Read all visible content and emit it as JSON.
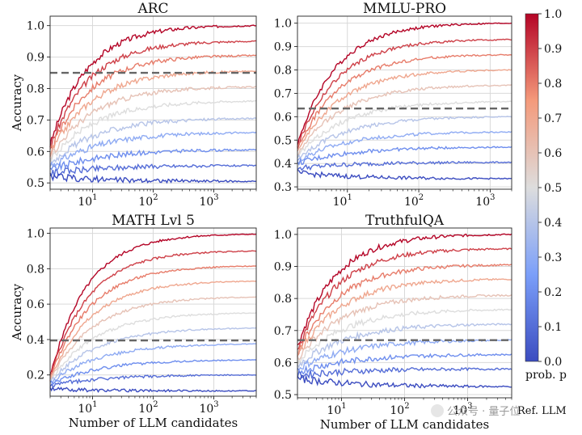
{
  "chart_data": [
    {
      "type": "line",
      "title": "ARC",
      "xlabel": "",
      "ylabel": "Accuracy",
      "xscale": "log",
      "xlim": [
        2,
        5000
      ],
      "ylim": [
        0.48,
        1.03
      ],
      "yticks": [
        0.5,
        0.6,
        0.7,
        0.8,
        0.9,
        1.0
      ],
      "ytick_labels": [
        "0.5",
        "0.6",
        "0.7",
        "0.8",
        "0.9",
        "1.0"
      ],
      "xtick_exponents": [
        "1",
        "2",
        "3"
      ],
      "reference_line": 0.85,
      "series": [
        {
          "p": 1.0,
          "start": 0.62,
          "end": 1.0
        },
        {
          "p": 0.9,
          "start": 0.61,
          "end": 0.95
        },
        {
          "p": 0.8,
          "start": 0.6,
          "end": 0.905
        },
        {
          "p": 0.7,
          "start": 0.59,
          "end": 0.855
        },
        {
          "p": 0.6,
          "start": 0.58,
          "end": 0.805
        },
        {
          "p": 0.5,
          "start": 0.57,
          "end": 0.76
        },
        {
          "p": 0.4,
          "start": 0.56,
          "end": 0.705
        },
        {
          "p": 0.3,
          "start": 0.55,
          "end": 0.66
        },
        {
          "p": 0.2,
          "start": 0.54,
          "end": 0.605
        },
        {
          "p": 0.1,
          "start": 0.53,
          "end": 0.555
        },
        {
          "p": 0.0,
          "start": 0.52,
          "end": 0.505
        }
      ]
    },
    {
      "type": "line",
      "title": "MMLU-PRO",
      "xlabel": "",
      "ylabel": "",
      "xscale": "log",
      "xlim": [
        2,
        2000
      ],
      "ylim": [
        0.29,
        1.03
      ],
      "yticks": [
        0.3,
        0.4,
        0.5,
        0.6,
        0.7,
        0.8,
        0.9,
        1.0
      ],
      "ytick_labels": [
        "0.3",
        "0.4",
        "0.5",
        "0.6",
        "0.7",
        "0.8",
        "0.9",
        "1.0"
      ],
      "xtick_exponents": [
        "1",
        "2",
        "3"
      ],
      "reference_line": 0.635,
      "series": [
        {
          "p": 1.0,
          "start": 0.48,
          "end": 1.0
        },
        {
          "p": 0.9,
          "start": 0.47,
          "end": 0.93
        },
        {
          "p": 0.8,
          "start": 0.46,
          "end": 0.865
        },
        {
          "p": 0.7,
          "start": 0.45,
          "end": 0.8
        },
        {
          "p": 0.6,
          "start": 0.44,
          "end": 0.735
        },
        {
          "p": 0.5,
          "start": 0.43,
          "end": 0.665
        },
        {
          "p": 0.4,
          "start": 0.42,
          "end": 0.6
        },
        {
          "p": 0.3,
          "start": 0.41,
          "end": 0.535
        },
        {
          "p": 0.2,
          "start": 0.4,
          "end": 0.47
        },
        {
          "p": 0.1,
          "start": 0.38,
          "end": 0.405
        },
        {
          "p": 0.0,
          "start": 0.36,
          "end": 0.335
        }
      ]
    },
    {
      "type": "line",
      "title": "MATH Lvl 5",
      "xlabel": "Number of LLM candidates",
      "ylabel": "Accuracy",
      "xscale": "log",
      "xlim": [
        2,
        5000
      ],
      "ylim": [
        0.08,
        1.03
      ],
      "yticks": [
        0.2,
        0.4,
        0.6,
        0.8,
        1.0
      ],
      "ytick_labels": [
        "0.2",
        "0.4",
        "0.6",
        "0.8",
        "1.0"
      ],
      "xtick_exponents": [
        "1",
        "2",
        "3"
      ],
      "reference_line": 0.395,
      "series": [
        {
          "p": 1.0,
          "start": 0.19,
          "end": 0.995
        },
        {
          "p": 0.9,
          "start": 0.185,
          "end": 0.9
        },
        {
          "p": 0.8,
          "start": 0.18,
          "end": 0.815
        },
        {
          "p": 0.7,
          "start": 0.175,
          "end": 0.73
        },
        {
          "p": 0.6,
          "start": 0.17,
          "end": 0.64
        },
        {
          "p": 0.5,
          "start": 0.165,
          "end": 0.55
        },
        {
          "p": 0.4,
          "start": 0.16,
          "end": 0.465
        },
        {
          "p": 0.3,
          "start": 0.155,
          "end": 0.375
        },
        {
          "p": 0.2,
          "start": 0.15,
          "end": 0.285
        },
        {
          "p": 0.1,
          "start": 0.14,
          "end": 0.2
        },
        {
          "p": 0.0,
          "start": 0.12,
          "end": 0.11
        }
      ]
    },
    {
      "type": "line",
      "title": "TruthfulQA",
      "xlabel": "Number of LLM candidates",
      "ylabel": "",
      "xscale": "log",
      "xlim": [
        2,
        5000
      ],
      "ylim": [
        0.49,
        1.02
      ],
      "yticks": [
        0.5,
        0.6,
        0.7,
        0.8,
        0.9,
        1.0
      ],
      "ytick_labels": [
        "0.5",
        "0.6",
        "0.7",
        "0.8",
        "0.9",
        "1.0"
      ],
      "xtick_exponents": [
        "1",
        "2",
        "3"
      ],
      "reference_line": 0.67,
      "series": [
        {
          "p": 1.0,
          "start": 0.65,
          "end": 1.0
        },
        {
          "p": 0.9,
          "start": 0.64,
          "end": 0.955
        },
        {
          "p": 0.8,
          "start": 0.63,
          "end": 0.905
        },
        {
          "p": 0.7,
          "start": 0.62,
          "end": 0.86
        },
        {
          "p": 0.6,
          "start": 0.61,
          "end": 0.81
        },
        {
          "p": 0.5,
          "start": 0.6,
          "end": 0.765
        },
        {
          "p": 0.4,
          "start": 0.59,
          "end": 0.72
        },
        {
          "p": 0.3,
          "start": 0.58,
          "end": 0.67
        },
        {
          "p": 0.2,
          "start": 0.57,
          "end": 0.625
        },
        {
          "p": 0.1,
          "start": 0.56,
          "end": 0.58
        },
        {
          "p": 0.0,
          "start": 0.55,
          "end": 0.525
        }
      ]
    }
  ],
  "colorbar": {
    "label": "prob. p",
    "ticks": [
      "0.0",
      "0.1",
      "0.2",
      "0.3",
      "0.4",
      "0.5",
      "0.6",
      "0.7",
      "0.8",
      "0.9",
      "1.0"
    ],
    "colormap": "coolwarm"
  },
  "watermark": "公众号 · 量子位",
  "legend_label": "Ref. LLM",
  "colors": {
    "reference_line": "#666666",
    "grid": "#d9d9d9",
    "low": "#3b4cc0",
    "mid": "#dddddd",
    "high": "#b40426"
  }
}
